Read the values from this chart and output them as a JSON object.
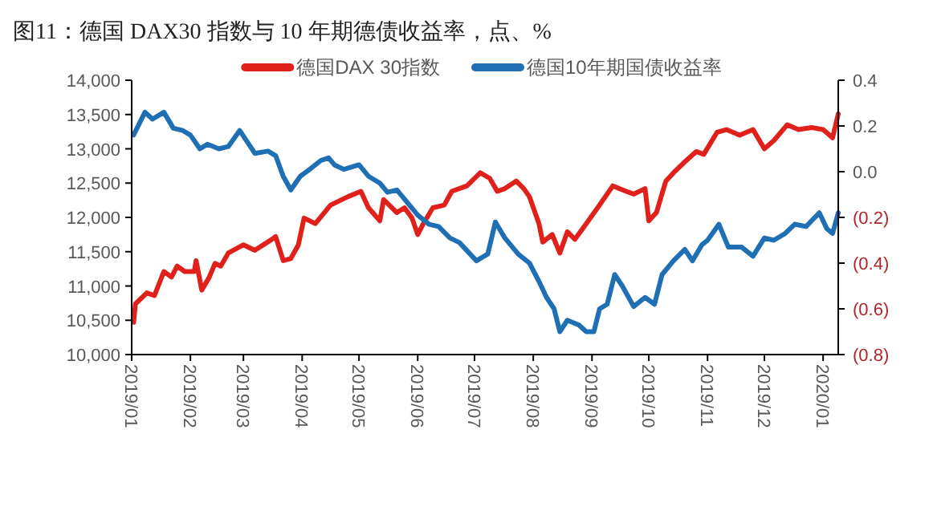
{
  "chart_data": {
    "type": "line",
    "title": "图11：德国 DAX30 指数与 10 年期德债收益率，点、%",
    "legend": "top",
    "xlim": [
      "2019-01-01",
      "2020-01-09"
    ],
    "xticks": [
      {
        "value": "2019-01-01",
        "label": "2019/01"
      },
      {
        "value": "2019-02-01",
        "label": "2019/02"
      },
      {
        "value": "2019-03-01",
        "label": "2019/03"
      },
      {
        "value": "2019-04-01",
        "label": "2019/04"
      },
      {
        "value": "2019-05-01",
        "label": "2019/05"
      },
      {
        "value": "2019-06-01",
        "label": "2019/06"
      },
      {
        "value": "2019-07-01",
        "label": "2019/07"
      },
      {
        "value": "2019-08-01",
        "label": "2019/08"
      },
      {
        "value": "2019-09-01",
        "label": "2019/09"
      },
      {
        "value": "2019-10-01",
        "label": "2019/10"
      },
      {
        "value": "2019-11-01",
        "label": "2019/11"
      },
      {
        "value": "2019-12-01",
        "label": "2019/12"
      },
      {
        "value": "2020-01-01",
        "label": "2020/01"
      }
    ],
    "ylim": [
      10000,
      14000
    ],
    "yticks": [
      {
        "value": 10000,
        "label": "10,000"
      },
      {
        "value": 10500,
        "label": "10,500"
      },
      {
        "value": 11000,
        "label": "11,000"
      },
      {
        "value": 11500,
        "label": "11,500"
      },
      {
        "value": 12000,
        "label": "12,000"
      },
      {
        "value": 12500,
        "label": "12,500"
      },
      {
        "value": 13000,
        "label": "13,000"
      },
      {
        "value": 13500,
        "label": "13,500"
      },
      {
        "value": 14000,
        "label": "14,000"
      }
    ],
    "y2lim": [
      -0.8,
      0.4
    ],
    "y2ticks": [
      {
        "value": -0.8,
        "label": "(0.8)"
      },
      {
        "value": -0.6,
        "label": "(0.6)"
      },
      {
        "value": -0.4,
        "label": "(0.4)"
      },
      {
        "value": -0.2,
        "label": "(0.2)"
      },
      {
        "value": 0,
        "label": "0.0"
      },
      {
        "value": 0.2,
        "label": "0.2"
      },
      {
        "value": 0.4,
        "label": "0.4"
      }
    ],
    "series": [
      {
        "name": "德国DAX 30指数",
        "color": "#e0211b",
        "x": [
          "2019-01-02",
          "2019-01-03",
          "2019-01-09",
          "2019-01-13",
          "2019-01-18",
          "2019-01-22",
          "2019-01-25",
          "2019-01-29",
          "2019-02-03",
          "2019-02-04",
          "2019-02-07",
          "2019-02-11",
          "2019-02-14",
          "2019-02-17",
          "2019-02-21",
          "2019-03-01",
          "2019-03-07",
          "2019-03-16",
          "2019-03-18",
          "2019-03-22",
          "2019-03-26",
          "2019-03-30",
          "2019-04-02",
          "2019-04-08",
          "2019-04-16",
          "2019-04-25",
          "2019-05-02",
          "2019-05-06",
          "2019-05-12",
          "2019-05-14",
          "2019-05-21",
          "2019-05-25",
          "2019-05-29",
          "2019-06-01",
          "2019-06-04",
          "2019-06-09",
          "2019-06-15",
          "2019-06-19",
          "2019-06-27",
          "2019-07-04",
          "2019-07-09",
          "2019-07-13",
          "2019-07-17",
          "2019-07-23",
          "2019-07-27",
          "2019-07-30",
          "2019-08-04",
          "2019-08-06",
          "2019-08-11",
          "2019-08-15",
          "2019-08-19",
          "2019-08-23",
          "2019-08-29",
          "2019-09-05",
          "2019-09-12",
          "2019-09-19",
          "2019-09-23",
          "2019-09-29",
          "2019-10-01",
          "2019-10-05",
          "2019-10-10",
          "2019-10-14",
          "2019-10-20",
          "2019-10-26",
          "2019-10-30",
          "2019-11-06",
          "2019-11-11",
          "2019-11-18",
          "2019-11-25",
          "2019-12-01",
          "2019-12-06",
          "2019-12-13",
          "2019-12-19",
          "2019-12-26",
          "2020-01-01",
          "2020-01-06",
          "2020-01-09"
        ],
        "values": [
          10470,
          10740,
          10900,
          10860,
          11210,
          11130,
          11290,
          11210,
          11210,
          11370,
          10940,
          11130,
          11330,
          11290,
          11480,
          11600,
          11520,
          11680,
          11720,
          11370,
          11400,
          11600,
          11990,
          11910,
          12180,
          12300,
          12380,
          12140,
          11950,
          12260,
          12070,
          12140,
          11990,
          11750,
          11910,
          12140,
          12180,
          12380,
          12460,
          12650,
          12570,
          12380,
          12420,
          12530,
          12420,
          12300,
          11910,
          11640,
          11750,
          11480,
          11790,
          11680,
          11910,
          12180,
          12460,
          12380,
          12340,
          12420,
          11950,
          12070,
          12530,
          12650,
          12810,
          12960,
          12920,
          13240,
          13280,
          13200,
          13280,
          13000,
          13120,
          13350,
          13280,
          13310,
          13280,
          13160,
          13510
        ]
      },
      {
        "name": "德国10年期国债收益率",
        "color": "#1f6fb4",
        "axis": "y2",
        "x": [
          "2019-01-02",
          "2019-01-05",
          "2019-01-08",
          "2019-01-12",
          "2019-01-18",
          "2019-01-23",
          "2019-01-28",
          "2019-02-01",
          "2019-02-06",
          "2019-02-10",
          "2019-02-16",
          "2019-02-21",
          "2019-02-27",
          "2019-03-07",
          "2019-03-14",
          "2019-03-18",
          "2019-03-22",
          "2019-03-26",
          "2019-03-31",
          "2019-04-05",
          "2019-04-11",
          "2019-04-15",
          "2019-04-18",
          "2019-04-23",
          "2019-05-01",
          "2019-05-06",
          "2019-05-12",
          "2019-05-16",
          "2019-05-21",
          "2019-05-25",
          "2019-06-01",
          "2019-06-07",
          "2019-06-12",
          "2019-06-18",
          "2019-06-23",
          "2019-07-02",
          "2019-07-08",
          "2019-07-12",
          "2019-07-17",
          "2019-07-24",
          "2019-07-30",
          "2019-08-04",
          "2019-08-08",
          "2019-08-12",
          "2019-08-15",
          "2019-08-19",
          "2019-08-25",
          "2019-08-29",
          "2019-09-02",
          "2019-09-05",
          "2019-09-09",
          "2019-09-13",
          "2019-09-17",
          "2019-09-23",
          "2019-09-29",
          "2019-10-04",
          "2019-10-08",
          "2019-10-14",
          "2019-10-20",
          "2019-10-24",
          "2019-10-29",
          "2019-11-01",
          "2019-11-07",
          "2019-11-12",
          "2019-11-19",
          "2019-11-25",
          "2019-12-01",
          "2019-12-06",
          "2019-12-12",
          "2019-12-17",
          "2019-12-23",
          "2019-12-30",
          "2020-01-03",
          "2020-01-06",
          "2020-01-09"
        ],
        "values": [
          0.16,
          0.21,
          0.26,
          0.23,
          0.26,
          0.19,
          0.18,
          0.16,
          0.1,
          0.12,
          0.1,
          0.11,
          0.18,
          0.08,
          0.09,
          0.07,
          -0.02,
          -0.08,
          -0.02,
          0.01,
          0.05,
          0.06,
          0.03,
          0.01,
          0.03,
          -0.02,
          -0.05,
          -0.09,
          -0.08,
          -0.12,
          -0.19,
          -0.23,
          -0.24,
          -0.29,
          -0.31,
          -0.39,
          -0.36,
          -0.22,
          -0.29,
          -0.36,
          -0.4,
          -0.48,
          -0.55,
          -0.6,
          -0.7,
          -0.65,
          -0.67,
          -0.7,
          -0.7,
          -0.6,
          -0.58,
          -0.45,
          -0.5,
          -0.59,
          -0.55,
          -0.58,
          -0.45,
          -0.39,
          -0.34,
          -0.39,
          -0.32,
          -0.3,
          -0.23,
          -0.33,
          -0.33,
          -0.37,
          -0.29,
          -0.3,
          -0.27,
          -0.23,
          -0.24,
          -0.18,
          -0.25,
          -0.27,
          -0.18
        ]
      }
    ]
  }
}
